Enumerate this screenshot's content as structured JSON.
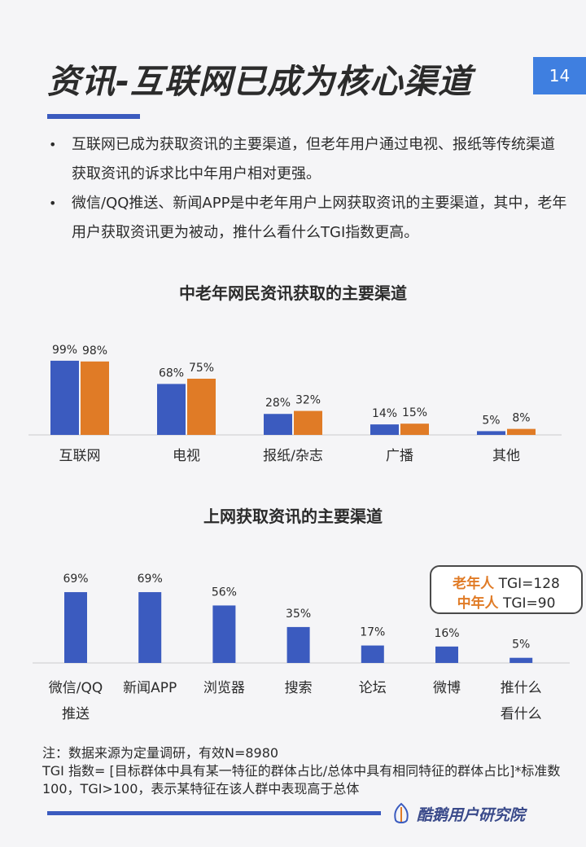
{
  "header": {
    "title": "资讯-互联网已成为核心渠道",
    "page_number": "14"
  },
  "bullets": [
    "互联网已成为获取资讯的主要渠道，但老年用户通过电视、报纸等传统渠道获取资讯的诉求比中年用户相对更强。",
    "微信/QQ推送、新闻APP是中老年用户上网获取资讯的主要渠道，其中，老年用户获取资讯更为被动，推什么看什么TGI指数更高。"
  ],
  "bullet_symbol": "•",
  "colors": {
    "blue": "#3b5bbf",
    "orange": "#e07b26",
    "accent_box": "#3f7fe0"
  },
  "callout": {
    "line1_tag": "老年人",
    "line1_val": "TGI=128",
    "line2_tag": "中年人",
    "line2_val": "TGI=90"
  },
  "note": {
    "line1": "注：数据来源为定量调研，有效N=8980",
    "line2": "TGI 指数= [目标群体中具有某一特征的群体占比/总体中具有相同特征的群体占比]*标准数100，TGI>100，表示某特征在该人群中表现高于总体"
  },
  "logo": {
    "text": "酷鹅用户研究院",
    "icon": "goose-logo-icon"
  },
  "chart_data": [
    {
      "type": "bar",
      "title": "中老年网民资讯获取的主要渠道",
      "categories": [
        "互联网",
        "电视",
        "报纸/杂志",
        "广播",
        "其他"
      ],
      "series": [
        {
          "color": "#3b5bbf",
          "values": [
            99,
            68,
            28,
            14,
            5
          ]
        },
        {
          "color": "#e07b26",
          "values": [
            98,
            75,
            32,
            15,
            8
          ]
        }
      ],
      "value_suffix": "%",
      "ylim": [
        0,
        100
      ]
    },
    {
      "type": "bar",
      "title": "上网获取资讯的主要渠道",
      "categories": [
        "微信/QQ\n推送",
        "新闻APP",
        "浏览器",
        "搜索",
        "论坛",
        "微博",
        "推什么\n看什么"
      ],
      "series": [
        {
          "color": "#3b5bbf",
          "values": [
            69,
            69,
            56,
            35,
            17,
            16,
            5
          ]
        }
      ],
      "value_suffix": "%",
      "ylim": [
        0,
        100
      ]
    }
  ]
}
